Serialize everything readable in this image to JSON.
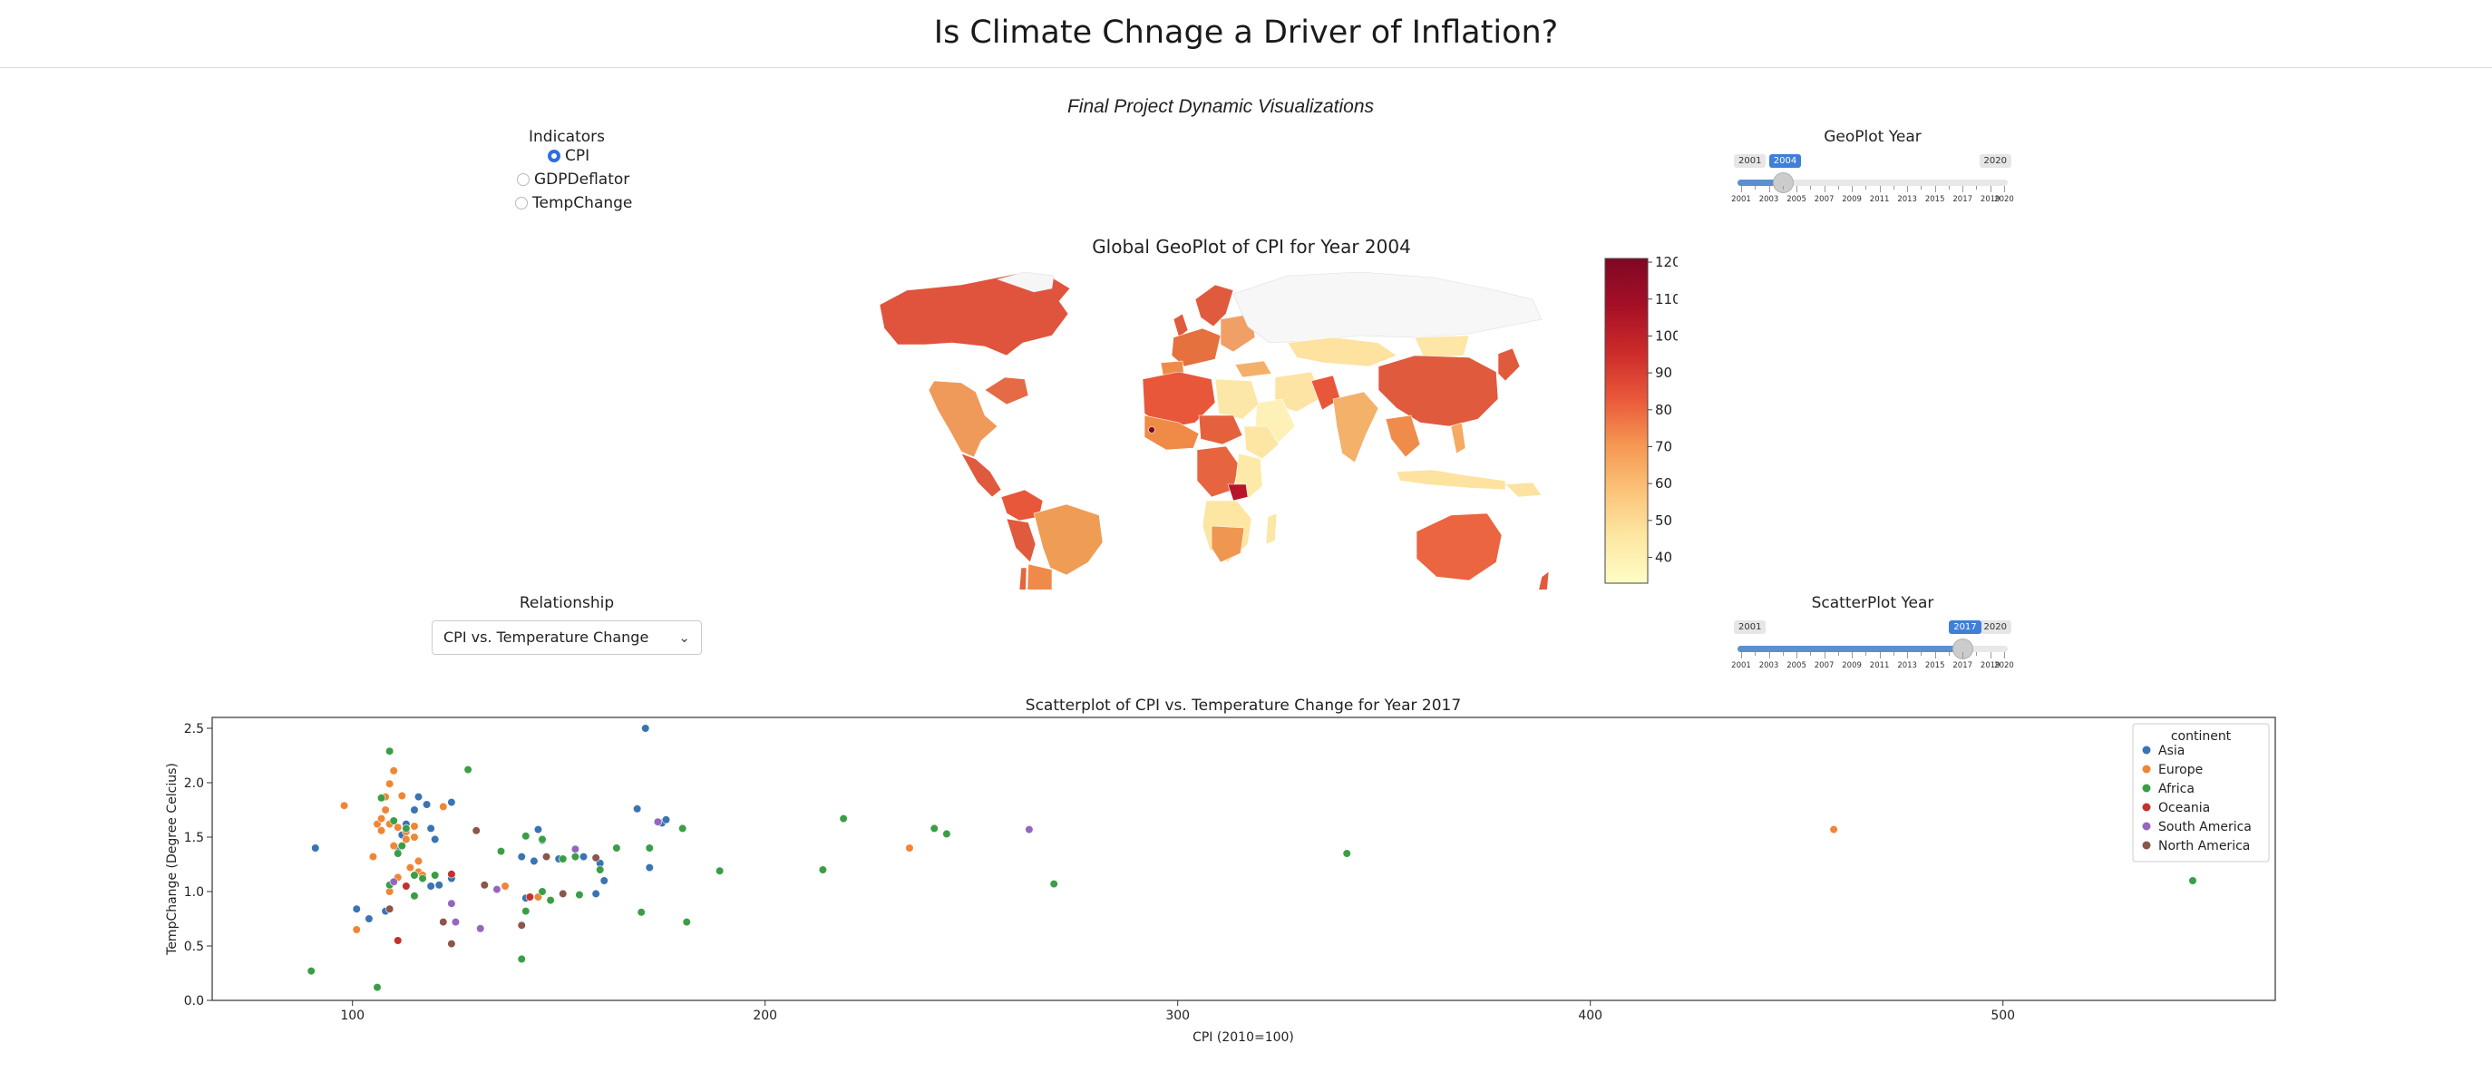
{
  "page": {
    "title": "Is Climate Chnage a Driver of Inflation?",
    "subtitle": "Final Project Dynamic Visualizations"
  },
  "indicators": {
    "label": "Indicators",
    "options": [
      "CPI",
      "GDPDeflator",
      "TempChange"
    ],
    "selected": "CPI"
  },
  "geo_slider": {
    "label": "GeoPlot Year",
    "min": 2001,
    "max": 2020,
    "value": 2004,
    "min_label": "2001",
    "max_label": "2020",
    "value_label": "2004",
    "tick_labels": [
      "2001",
      "2003",
      "2005",
      "2007",
      "2009",
      "2011",
      "2013",
      "2015",
      "2017",
      "2019",
      "2020"
    ]
  },
  "geoplot": {
    "title": "Global GeoPlot of CPI for Year 2004",
    "colorbar_ticks": [
      "120",
      "110",
      "100",
      "90",
      "80",
      "70",
      "60",
      "50",
      "40"
    ],
    "colorbar_range": [
      33,
      121
    ],
    "colorscale": [
      "#fffdc6",
      "#fde7a3",
      "#fbc378",
      "#f59651",
      "#e8573a",
      "#cb2a29",
      "#a50f26",
      "#7e0823"
    ]
  },
  "relationship": {
    "label": "Relationship",
    "selected": "CPI vs. Temperature Change"
  },
  "scatter_slider": {
    "label": "ScatterPlot Year",
    "min": 2001,
    "max": 2020,
    "value": 2017,
    "min_label": "2001",
    "max_label": "2020",
    "value_label": "2017",
    "tick_labels": [
      "2001",
      "2003",
      "2005",
      "2007",
      "2009",
      "2011",
      "2013",
      "2015",
      "2017",
      "2019",
      "2020"
    ]
  },
  "chart_data": {
    "type": "scatter",
    "title": "Scatterplot of CPI vs. Temperature Change for Year 2017",
    "xlabel": "CPI (2010=100)",
    "ylabel": "TempChange (Degree Celcius)",
    "xlim": [
      66,
      566
    ],
    "ylim": [
      0,
      2.6
    ],
    "xticks": [
      100,
      200,
      300,
      400,
      500
    ],
    "yticks": [
      0.0,
      0.5,
      1.0,
      1.5,
      2.0,
      2.5
    ],
    "legend_title": "continent",
    "legend_position": "top-right",
    "series": [
      {
        "name": "Asia",
        "color": "#3a74b3",
        "points": [
          [
            91,
            1.4
          ],
          [
            101,
            0.84
          ],
          [
            104,
            0.75
          ],
          [
            108,
            0.82
          ],
          [
            111,
            1.4
          ],
          [
            112,
            1.52
          ],
          [
            113,
            1.62
          ],
          [
            115,
            1.75
          ],
          [
            116,
            1.87
          ],
          [
            118,
            1.8
          ],
          [
            119,
            1.58
          ],
          [
            119,
            1.05
          ],
          [
            120,
            1.48
          ],
          [
            121,
            1.06
          ],
          [
            124,
            1.82
          ],
          [
            124,
            1.12
          ],
          [
            141,
            1.32
          ],
          [
            142,
            0.94
          ],
          [
            144,
            1.28
          ],
          [
            145,
            1.57
          ],
          [
            146,
            1.47
          ],
          [
            150,
            1.3
          ],
          [
            156,
            1.32
          ],
          [
            159,
            0.98
          ],
          [
            160,
            1.26
          ],
          [
            161,
            1.1
          ],
          [
            169,
            1.76
          ],
          [
            171,
            2.5
          ],
          [
            172,
            1.22
          ],
          [
            175,
            1.63
          ],
          [
            176,
            1.66
          ]
        ]
      },
      {
        "name": "Europe",
        "color": "#ef8636",
        "points": [
          [
            98,
            1.79
          ],
          [
            101,
            0.65
          ],
          [
            105,
            1.32
          ],
          [
            106,
            1.62
          ],
          [
            107,
            1.56
          ],
          [
            107,
            1.67
          ],
          [
            108,
            1.75
          ],
          [
            108,
            1.87
          ],
          [
            109,
            1.0
          ],
          [
            109,
            1.99
          ],
          [
            109,
            1.62
          ],
          [
            110,
            2.11
          ],
          [
            110,
            1.42
          ],
          [
            111,
            1.59
          ],
          [
            111,
            1.13
          ],
          [
            112,
            1.88
          ],
          [
            113,
            1.55
          ],
          [
            113,
            1.48
          ],
          [
            114,
            1.22
          ],
          [
            115,
            1.6
          ],
          [
            115,
            1.5
          ],
          [
            116,
            1.28
          ],
          [
            116,
            1.18
          ],
          [
            117,
            1.15
          ],
          [
            122,
            1.78
          ],
          [
            137,
            1.05
          ],
          [
            145,
            0.95
          ],
          [
            235,
            1.4
          ],
          [
            459,
            1.57
          ]
        ]
      },
      {
        "name": "Africa",
        "color": "#3b9e46",
        "points": [
          [
            90,
            0.27
          ],
          [
            106,
            0.12
          ],
          [
            107,
            1.86
          ],
          [
            109,
            1.06
          ],
          [
            109,
            2.29
          ],
          [
            110,
            1.65
          ],
          [
            111,
            1.35
          ],
          [
            112,
            1.42
          ],
          [
            113,
            1.58
          ],
          [
            115,
            1.15
          ],
          [
            115,
            0.96
          ],
          [
            117,
            1.12
          ],
          [
            120,
            1.15
          ],
          [
            128,
            2.12
          ],
          [
            136,
            1.37
          ],
          [
            141,
            0.38
          ],
          [
            142,
            1.51
          ],
          [
            142,
            0.82
          ],
          [
            146,
            1.48
          ],
          [
            146,
            1.0
          ],
          [
            148,
            0.92
          ],
          [
            151,
            1.3
          ],
          [
            154,
            1.32
          ],
          [
            155,
            0.97
          ],
          [
            160,
            1.2
          ],
          [
            164,
            1.4
          ],
          [
            170,
            0.81
          ],
          [
            172,
            1.4
          ],
          [
            180,
            1.58
          ],
          [
            181,
            0.72
          ],
          [
            189,
            1.19
          ],
          [
            214,
            1.2
          ],
          [
            219,
            1.67
          ],
          [
            241,
            1.58
          ],
          [
            244,
            1.53
          ],
          [
            270,
            1.07
          ],
          [
            341,
            1.35
          ],
          [
            546,
            1.1
          ]
        ]
      },
      {
        "name": "Oceania",
        "color": "#c5312e",
        "points": [
          [
            111,
            0.55
          ],
          [
            113,
            1.05
          ],
          [
            124,
            1.16
          ],
          [
            143,
            0.95
          ]
        ]
      },
      {
        "name": "South America",
        "color": "#9466bd",
        "points": [
          [
            110,
            1.09
          ],
          [
            124,
            0.89
          ],
          [
            125,
            0.72
          ],
          [
            131,
            0.66
          ],
          [
            135,
            1.02
          ],
          [
            154,
            1.39
          ],
          [
            159,
            1.31
          ],
          [
            174,
            1.64
          ],
          [
            264,
            1.57
          ]
        ]
      },
      {
        "name": "North America",
        "color": "#8c564b",
        "points": [
          [
            109,
            0.84
          ],
          [
            122,
            0.72
          ],
          [
            124,
            0.52
          ],
          [
            130,
            1.56
          ],
          [
            132,
            1.06
          ],
          [
            141,
            0.69
          ],
          [
            147,
            1.32
          ],
          [
            151,
            0.98
          ],
          [
            159,
            1.31
          ]
        ]
      }
    ]
  }
}
